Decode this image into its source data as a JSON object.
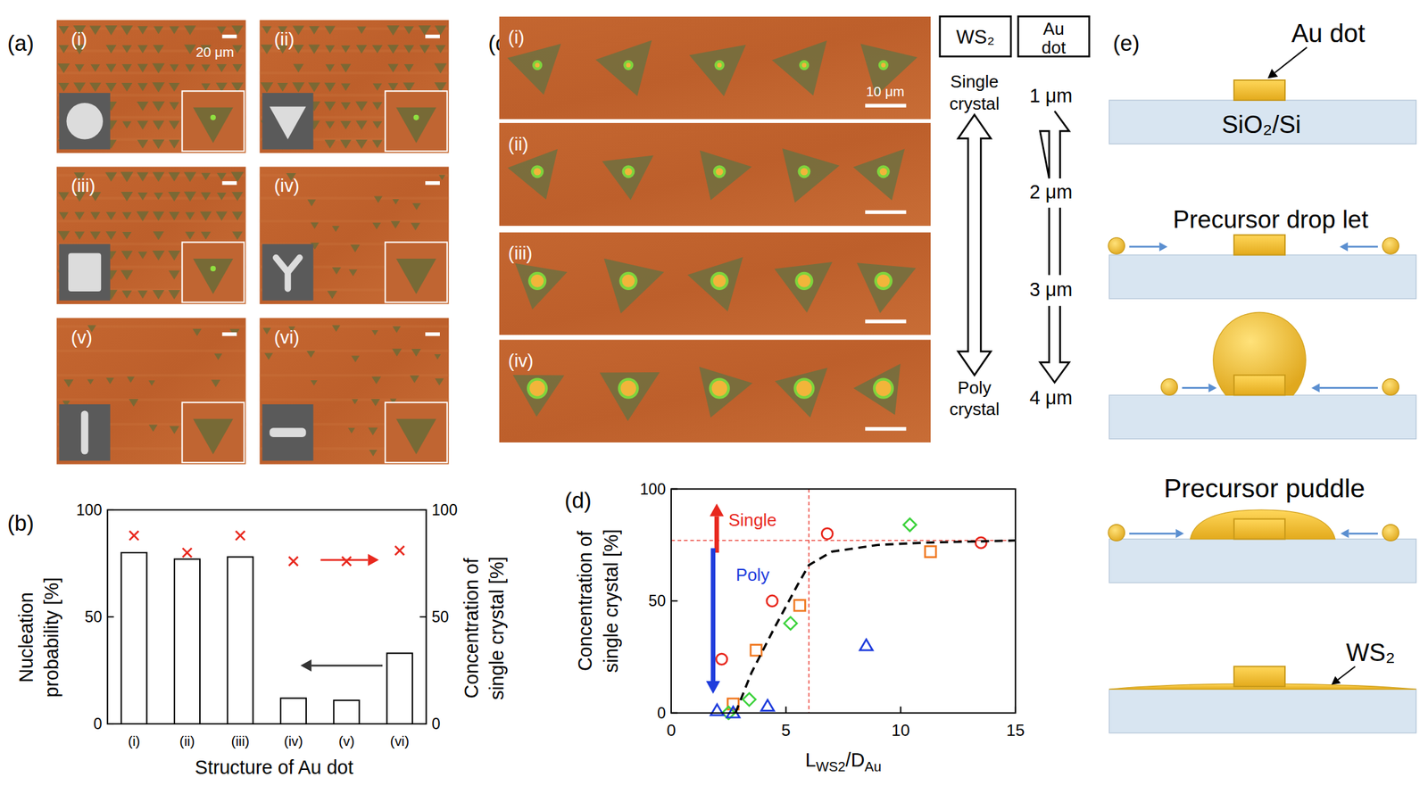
{
  "panels": {
    "a": {
      "label": "(a)",
      "scale_bar": "20 μm",
      "subpanels": [
        "(i)",
        "(ii)",
        "(iii)",
        "(iv)",
        "(v)",
        "(vi)"
      ]
    },
    "c": {
      "label": "(c)",
      "scale_bar": "10 μm",
      "rows": [
        "(i)",
        "(ii)",
        "(iii)",
        "(iv)"
      ],
      "header_ws2": "WS₂",
      "header_au": [
        "Au",
        "dot"
      ],
      "ws2_top": [
        "Single",
        "crystal"
      ],
      "ws2_bottom": [
        "Poly",
        "crystal"
      ],
      "au_sizes": [
        "1 μm",
        "2 μm",
        "3 μm",
        "4 μm"
      ]
    },
    "e": {
      "label": "(e)",
      "au_dot": "Au dot",
      "substrate": "SiO₂/Si",
      "droplet": "Precursor drop let",
      "puddle": "Precursor puddle",
      "film": "WS₂"
    }
  },
  "chart_data": [
    {
      "label": "(b)",
      "type": "bar",
      "categories": [
        "(i)",
        "(ii)",
        "(iii)",
        "(iv)",
        "(v)",
        "(vi)"
      ],
      "xlabel": "Structure of Au dot",
      "ylabel": [
        "Nucleation",
        "probability [%]"
      ],
      "y2label": [
        "Concentration of",
        "single crystal [%]"
      ],
      "ylim": [
        0,
        100
      ],
      "yticks": [
        0,
        50,
        100
      ],
      "y2lim": [
        0,
        100
      ],
      "y2ticks": [
        0,
        50,
        100
      ],
      "series": [
        {
          "type": "bar",
          "color": "#ffffff",
          "values": [
            80,
            77,
            78,
            12,
            11,
            33
          ]
        },
        {
          "type": "scatter",
          "marker": "x",
          "color": "#e8281e",
          "axis": "y2",
          "values": [
            88,
            80,
            88,
            76,
            76,
            81
          ]
        }
      ]
    },
    {
      "label": "(d)",
      "type": "scatter",
      "xlabel": "LWS2/DAu",
      "ylabel": [
        "Concentration of",
        "single crystal [%]"
      ],
      "xlim": [
        0,
        15
      ],
      "xticks": [
        0,
        5,
        10,
        15
      ],
      "ylim": [
        0,
        100
      ],
      "yticks": [
        0,
        50,
        100
      ],
      "annotations": [
        {
          "text": "Single",
          "color": "#e8281e"
        },
        {
          "text": "Poly",
          "color": "#1e3cdc"
        }
      ],
      "reference_lines": [
        {
          "axis": "y",
          "value": 77
        },
        {
          "axis": "x",
          "value": 6
        }
      ],
      "series": [
        {
          "marker": "circle",
          "color": "#e8281e",
          "x": [
            2.2,
            4.4,
            6.8,
            13.5
          ],
          "values": [
            24,
            50,
            80,
            76
          ]
        },
        {
          "marker": "square",
          "color": "#f07820",
          "x": [
            2.7,
            3.7,
            5.6,
            11.3
          ],
          "values": [
            4,
            28,
            48,
            72
          ]
        },
        {
          "marker": "diamond",
          "color": "#3cd23c",
          "x": [
            2.5,
            3.4,
            5.2,
            10.4
          ],
          "values": [
            0,
            6,
            40,
            84
          ]
        },
        {
          "marker": "triangle",
          "color": "#1e3cdc",
          "x": [
            2.0,
            2.7,
            4.2,
            8.5
          ],
          "values": [
            1,
            0,
            3,
            30
          ]
        },
        {
          "type": "line",
          "line_style": "dashed",
          "color": "#000000",
          "x": [
            2.8,
            3.5,
            4.5,
            5.5,
            6,
            7,
            9,
            11,
            15
          ],
          "values": [
            0,
            18,
            38,
            57,
            66,
            72,
            75,
            76,
            77
          ]
        }
      ]
    }
  ]
}
